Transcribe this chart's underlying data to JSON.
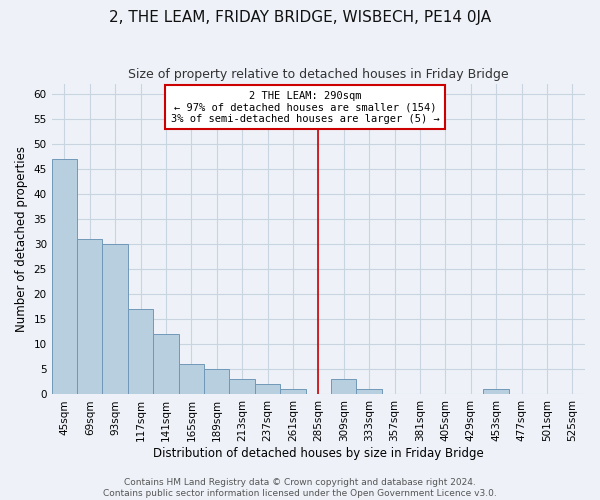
{
  "title": "2, THE LEAM, FRIDAY BRIDGE, WISBECH, PE14 0JA",
  "subtitle": "Size of property relative to detached houses in Friday Bridge",
  "xlabel": "Distribution of detached houses by size in Friday Bridge",
  "ylabel": "Number of detached properties",
  "bar_labels": [
    "45sqm",
    "69sqm",
    "93sqm",
    "117sqm",
    "141sqm",
    "165sqm",
    "189sqm",
    "213sqm",
    "237sqm",
    "261sqm",
    "285sqm",
    "309sqm",
    "333sqm",
    "357sqm",
    "381sqm",
    "405sqm",
    "429sqm",
    "453sqm",
    "477sqm",
    "501sqm",
    "525sqm"
  ],
  "bar_values": [
    47,
    31,
    30,
    17,
    12,
    6,
    5,
    3,
    2,
    1,
    0,
    3,
    1,
    0,
    0,
    0,
    0,
    1,
    0,
    0,
    0
  ],
  "bar_color": "#b8cfe0",
  "bar_edge_color": "#7098b8",
  "grid_color": "#c8d4e0",
  "bg_color": "#eef2f8",
  "vline_x_index": 10,
  "vline_color": "#cc0000",
  "annotation_title": "2 THE LEAM: 290sqm",
  "annotation_line1": "← 97% of detached houses are smaller (154)",
  "annotation_line2": "3% of semi-detached houses are larger (5) →",
  "annotation_box_color": "#ffffff",
  "annotation_box_edge": "#cc0000",
  "ylim": [
    0,
    62
  ],
  "yticks": [
    0,
    5,
    10,
    15,
    20,
    25,
    30,
    35,
    40,
    45,
    50,
    55,
    60
  ],
  "footer1": "Contains HM Land Registry data © Crown copyright and database right 2024.",
  "footer2": "Contains public sector information licensed under the Open Government Licence v3.0.",
  "title_fontsize": 11,
  "subtitle_fontsize": 9,
  "axis_label_fontsize": 8.5,
  "tick_fontsize": 7.5,
  "footer_fontsize": 6.5
}
